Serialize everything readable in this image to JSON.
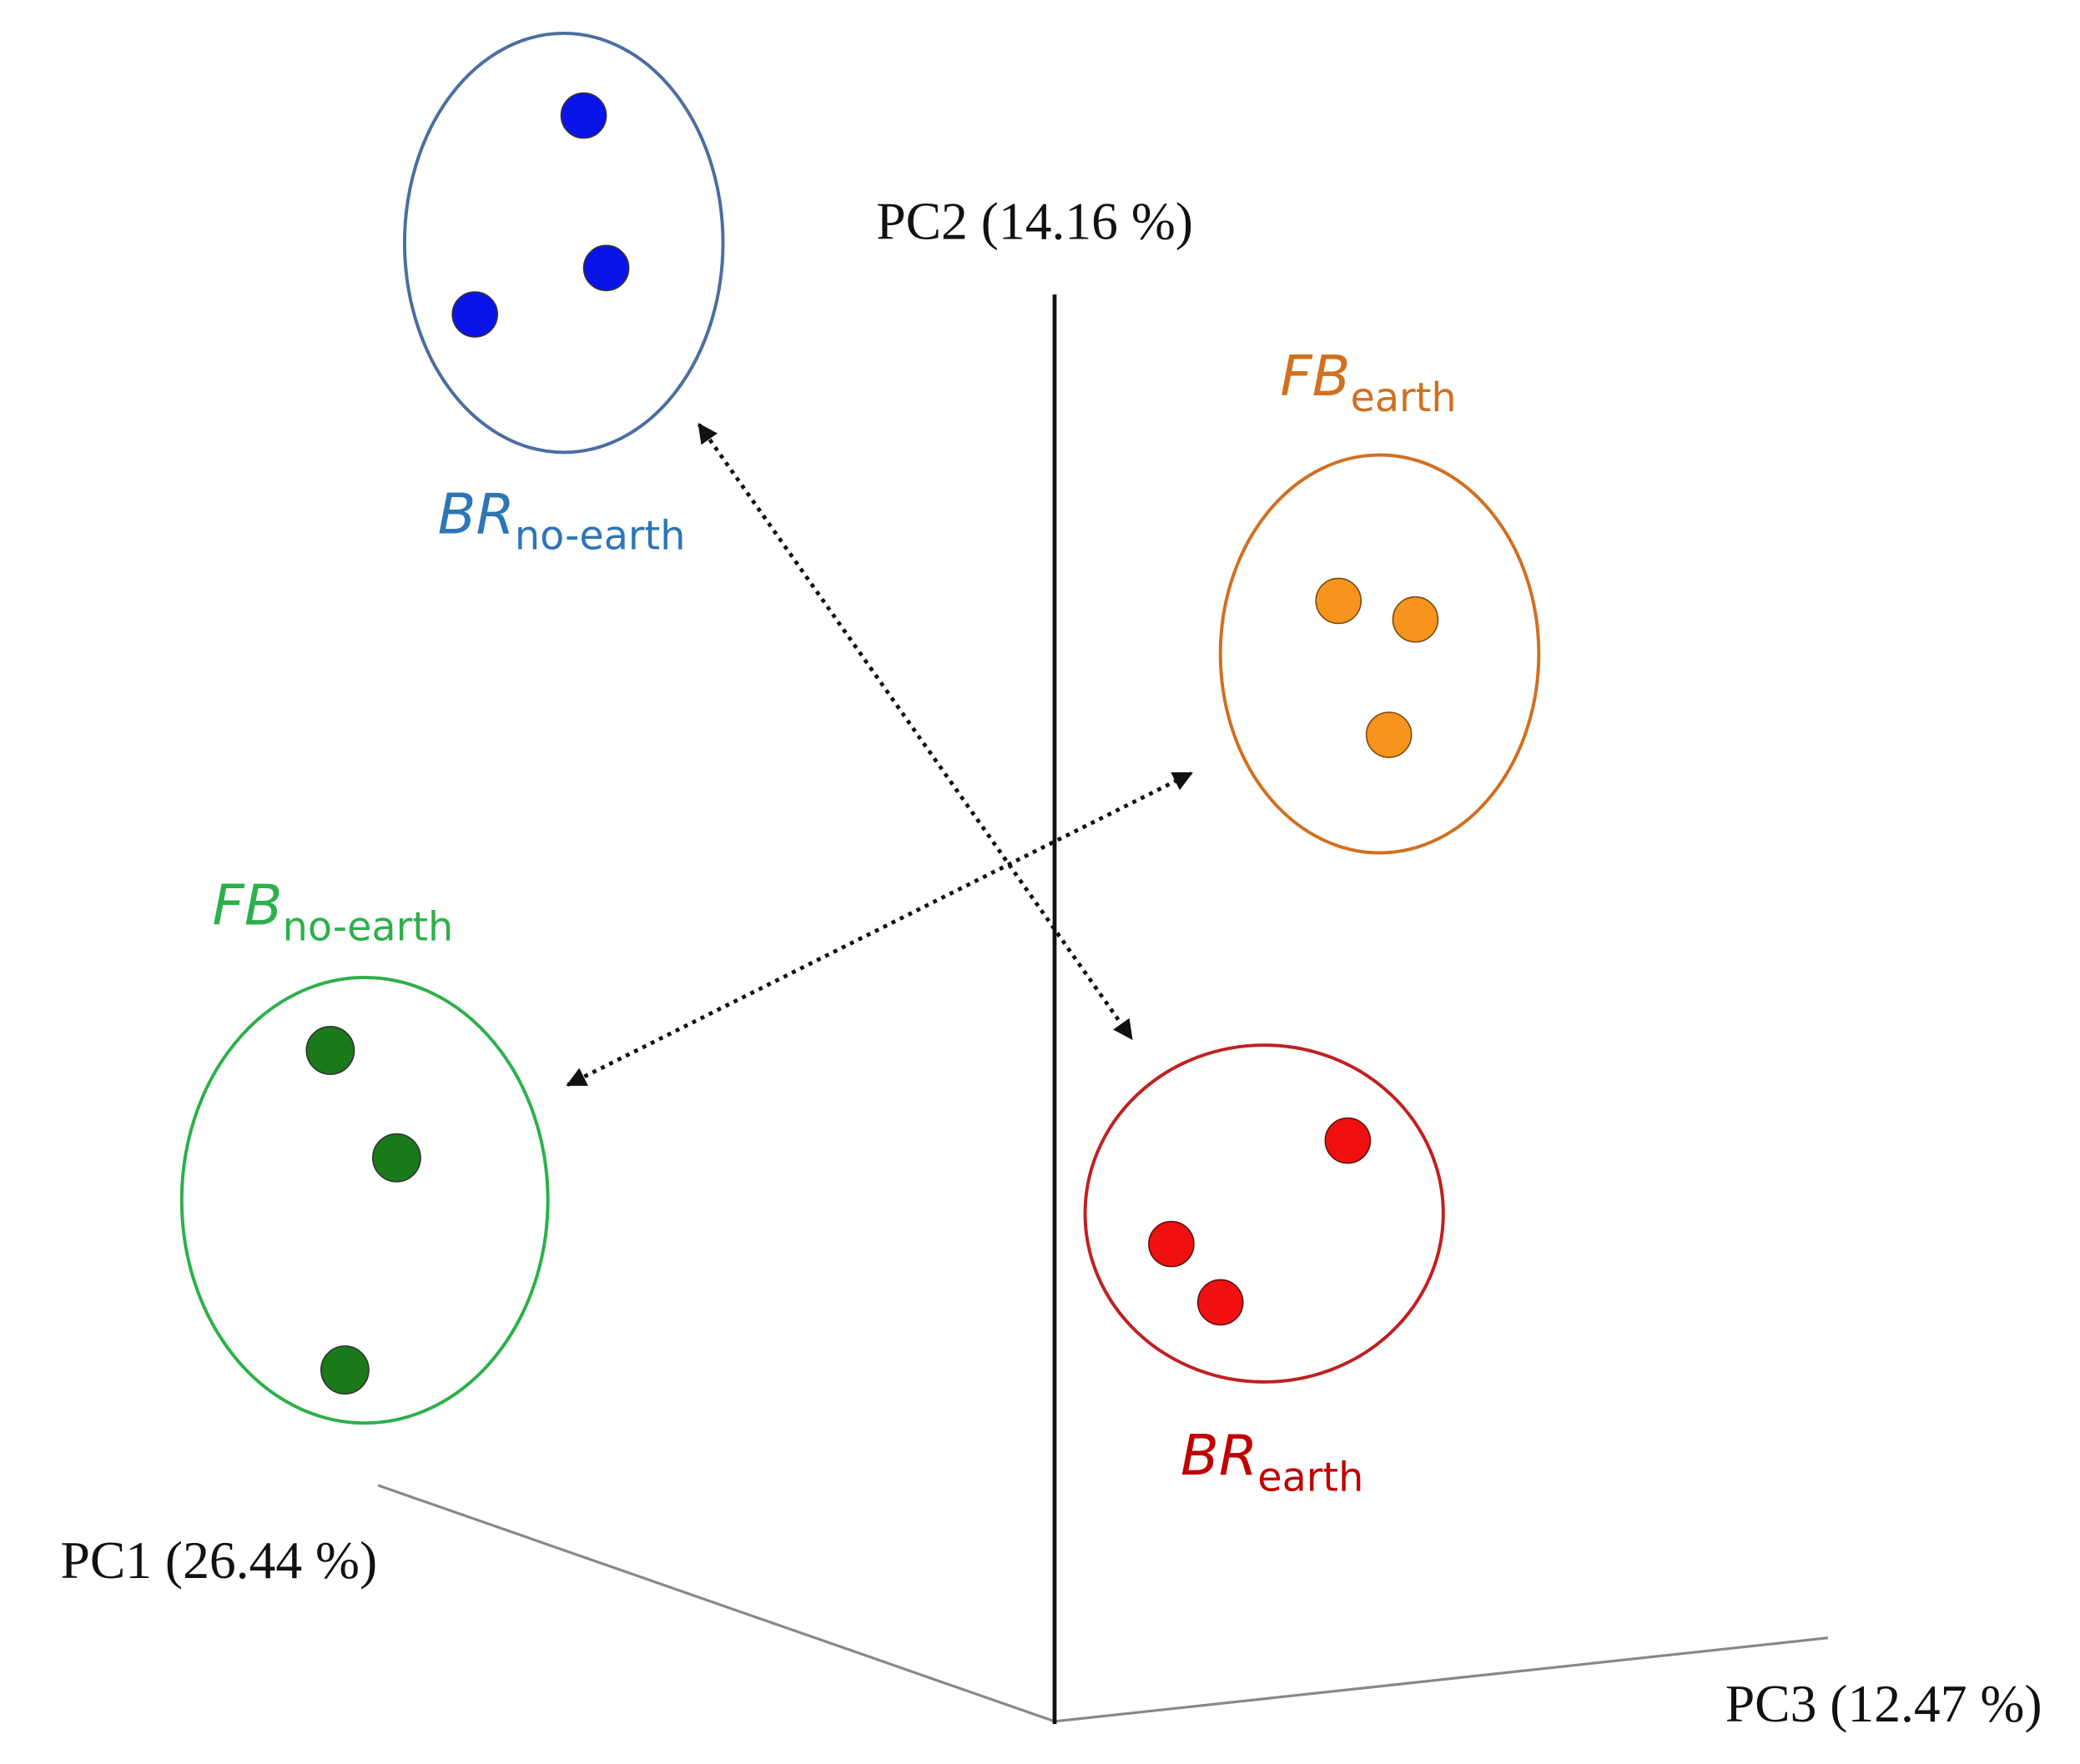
{
  "axes": [
    {
      "label": "PC1 (26.44 %)"
    },
    {
      "label": "PC2 (14.16 %)"
    },
    {
      "label": "PC3 (12.47 %)"
    }
  ],
  "groups": [
    {
      "name": "BR",
      "subscript": "no-earth"
    },
    {
      "name": "FB",
      "subscript": "earth"
    },
    {
      "name": "FB",
      "subscript": "no-earth"
    },
    {
      "name": "BR",
      "subscript": "earth"
    }
  ]
}
